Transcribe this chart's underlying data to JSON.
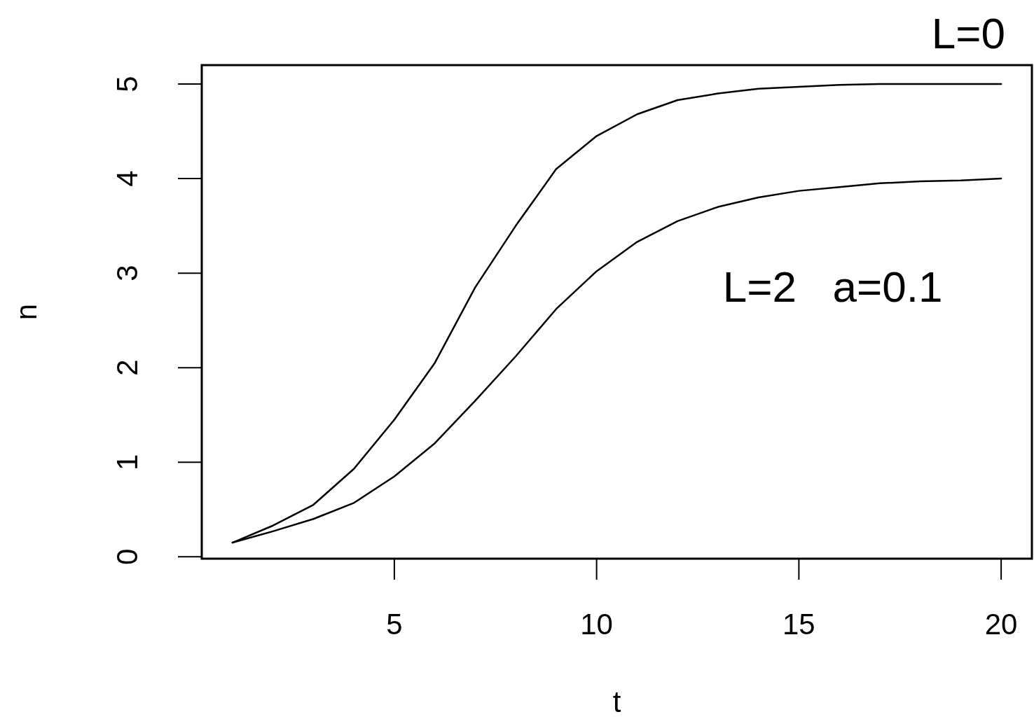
{
  "chart_data": {
    "type": "line",
    "xlabel": "t",
    "ylabel": "n",
    "xlim": [
      0.24,
      20.76
    ],
    "ylim": [
      -0.02,
      5.2
    ],
    "xticks": [
      5,
      10,
      15,
      20
    ],
    "yticks": [
      0,
      1,
      2,
      3,
      4,
      5
    ],
    "grid": false,
    "legend": false,
    "marker": "none",
    "line_style": "solid",
    "x": [
      1,
      2,
      3,
      4,
      5,
      6,
      7,
      8,
      9,
      10,
      11,
      12,
      13,
      14,
      15,
      16,
      17,
      18,
      19,
      20
    ],
    "series": [
      {
        "name": "L=0",
        "color": "#000000",
        "values": [
          0.15,
          0.33,
          0.55,
          0.93,
          1.45,
          2.05,
          2.85,
          3.5,
          4.1,
          4.45,
          4.68,
          4.83,
          4.9,
          4.95,
          4.97,
          4.99,
          5.0,
          5.0,
          5.0,
          5.0
        ]
      },
      {
        "name": "L=2   a=0.1",
        "color": "#000000",
        "values": [
          0.15,
          0.27,
          0.4,
          0.57,
          0.85,
          1.2,
          1.65,
          2.12,
          2.62,
          3.02,
          3.33,
          3.55,
          3.7,
          3.8,
          3.87,
          3.91,
          3.95,
          3.97,
          3.98,
          4.0
        ]
      }
    ]
  }
}
